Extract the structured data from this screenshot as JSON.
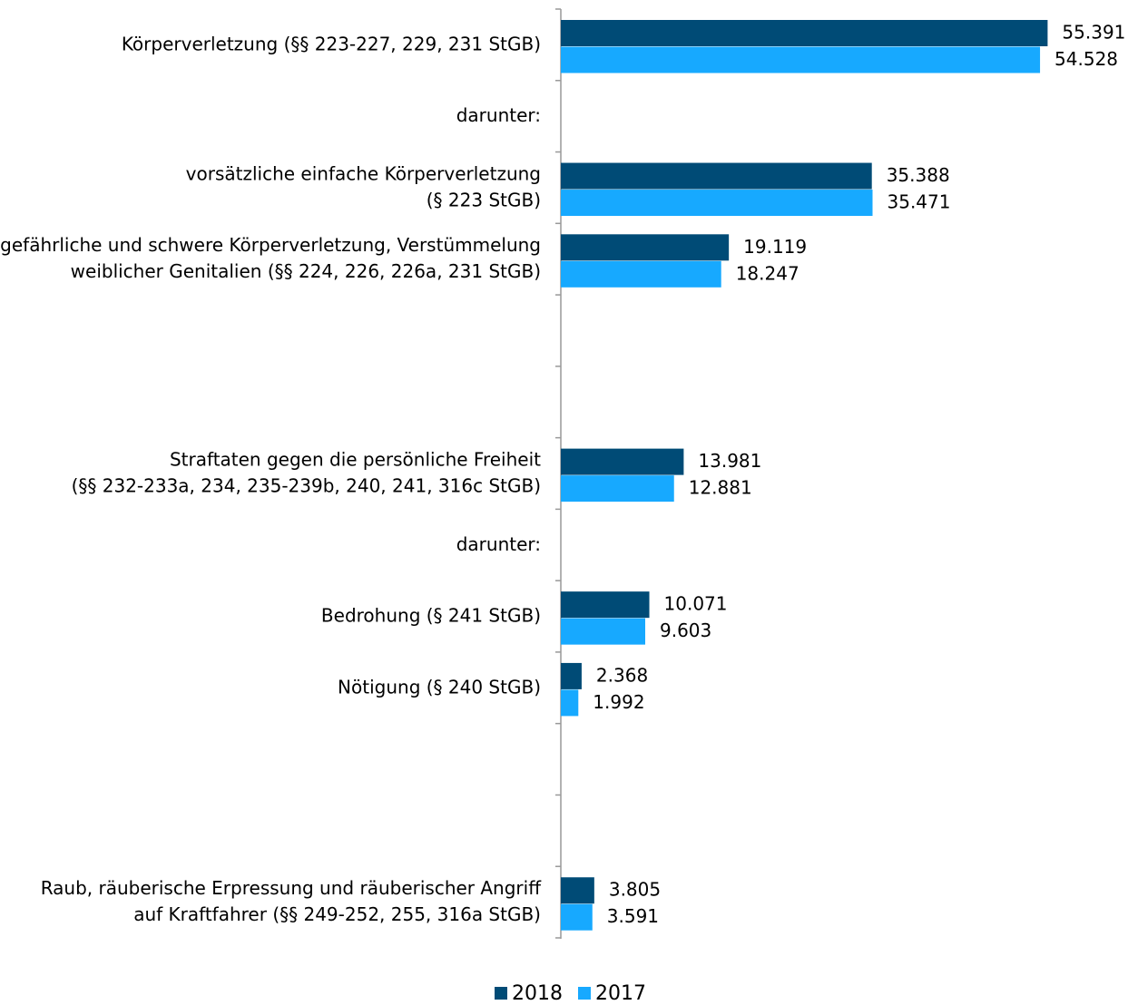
{
  "chart_data": {
    "type": "bar",
    "orientation": "horizontal",
    "categories": [
      "Körperverletzung (§§ 223-227, 229, 231 StGB)",
      "darunter:",
      "vorsätzliche einfache Körperverletzung\n(§ 223 StGB)",
      "gefährliche und schwere Körperverletzung, Verstümmelung\nweiblicher Genitalien (§§ 224, 226, 226a, 231 StGB)",
      null,
      null,
      "Straftaten gegen die persönliche Freiheit\n(§§ 232-233a, 234, 235-239b, 240, 241, 316c StGB)",
      "darunter:",
      "Bedrohung (§ 241 StGB)",
      "Nötigung (§ 240 StGB)",
      null,
      null,
      "Raub, räuberische Erpressung und räuberischer Angriff\nauf Kraftfahrer (§§ 249-252, 255, 316a StGB)"
    ],
    "series": [
      {
        "name": "2018",
        "color": "#004b76",
        "values": [
          55391,
          null,
          35388,
          19119,
          null,
          null,
          13981,
          null,
          10071,
          2368,
          null,
          null,
          3805
        ],
        "value_labels": [
          "55.391",
          null,
          "35.388",
          "19.119",
          null,
          null,
          "13.981",
          null,
          "10.071",
          "2.368",
          null,
          null,
          "3.805"
        ]
      },
      {
        "name": "2017",
        "color": "#17a9ff",
        "values": [
          54528,
          null,
          35471,
          18247,
          null,
          null,
          12881,
          null,
          9603,
          1992,
          null,
          null,
          3591
        ],
        "value_labels": [
          "54.528",
          null,
          "35.471",
          "18.247",
          null,
          null,
          "12.881",
          null,
          "9.603",
          "1.992",
          null,
          null,
          "3.591"
        ]
      }
    ],
    "xlim": [
      0,
      57000
    ],
    "legend": "bottom"
  }
}
